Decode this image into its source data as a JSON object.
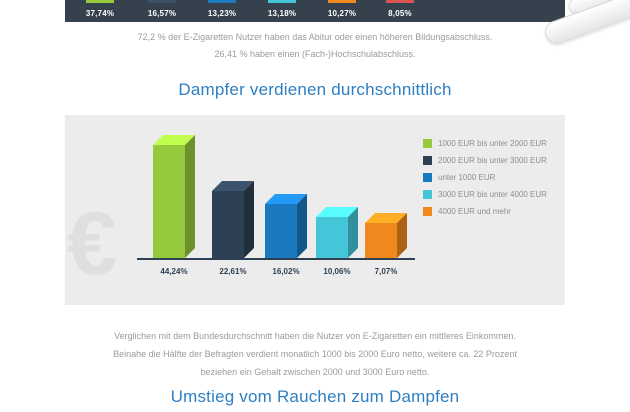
{
  "palette": {
    "strip_bg": "#35424e",
    "heading_blue": "#2e7fc2",
    "gray_text": "#9b9b9b",
    "panel_bg": "#ececec",
    "navy": "#2e4154"
  },
  "top_strip": {
    "values": [
      "37,74%",
      "16,57%",
      "13,23%",
      "13,18%",
      "10,27%",
      "8,05%"
    ],
    "marker_colors": [
      "#97c93d",
      "#3d5166",
      "#1b79c0",
      "#45c6d8",
      "#f0891d",
      "#d9534f"
    ]
  },
  "education": {
    "line1": "72,2 % der E-Zigaretten Nutzer haben das Abitur oder einen höheren Bildungsabschluss.",
    "line2": "26,41 % haben einen (Fach-)Hochschulabschluss."
  },
  "income": {
    "title": "Dampfer verdienen durchschnittlich",
    "euro_symbol": "€",
    "bars": [
      {
        "percent": "44,24%",
        "label": "1000 EUR bis unter 2000 EUR",
        "color": "#97c93d"
      },
      {
        "percent": "22,61%",
        "label": "2000 EUR bis unter 3000 EUR",
        "color": "#2e4154"
      },
      {
        "percent": "16,02%",
        "label": "unter 1000 EUR",
        "color": "#1b79c0"
      },
      {
        "percent": "10,06%",
        "label": "3000 EUR bis unter 4000 EUR",
        "color": "#45c6d8"
      },
      {
        "percent": "7,07%",
        "label": "4000 EUR und mehr",
        "color": "#f0891d"
      }
    ],
    "note_line1": "Verglichen mit dem Bundesdurchschnitt haben die Nutzer von E-Zigaretten ein mittleres Einkommen.",
    "note_line2": "Beinahe die Hälfte der Befragten verdient monatlich 1000 bis 2000 Euro netto, weitere ca. 22 Prozent",
    "note_line3": "beziehen ein Gehalt zwischen 2000 und 3000 Euro netto."
  },
  "switch_section": {
    "title": "Umstieg vom Rauchen zum Dampfen"
  },
  "chart_data": [
    {
      "type": "bar",
      "title": "",
      "values": [
        37.74,
        16.57,
        13.23,
        13.18,
        10.27,
        8.05
      ],
      "value_labels": [
        "37,74%",
        "16,57%",
        "13,23%",
        "13,18%",
        "10,27%",
        "8,05%"
      ]
    },
    {
      "type": "bar",
      "title": "Dampfer verdienen durchschnittlich",
      "categories": [
        "1000 EUR bis unter 2000 EUR",
        "2000 EUR bis unter 3000 EUR",
        "unter 1000 EUR",
        "3000 EUR bis unter 4000 EUR",
        "4000 EUR und mehr"
      ],
      "values": [
        44.24,
        22.61,
        16.02,
        10.06,
        7.07
      ],
      "value_labels": [
        "44,24%",
        "22,61%",
        "16,02%",
        "10,06%",
        "7,07%"
      ],
      "colors": [
        "#97c93d",
        "#2e4154",
        "#1b79c0",
        "#45c6d8",
        "#f0891d"
      ],
      "legend_position": "right",
      "ylim": [
        0,
        50
      ]
    }
  ]
}
